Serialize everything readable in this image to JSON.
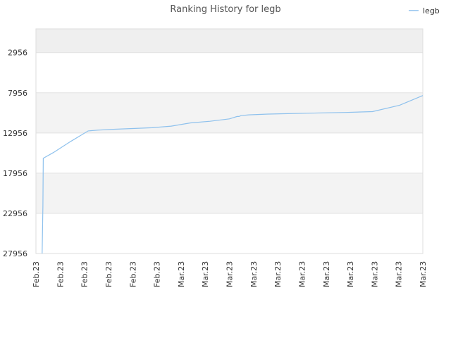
{
  "chart_data": {
    "type": "line",
    "title": "Ranking History for legb",
    "legend": {
      "position": "top-right",
      "entries": [
        {
          "name": "legb",
          "color": "#8ec1ed"
        }
      ]
    },
    "y_axis": {
      "reversed": true,
      "range": [
        27956,
        0
      ],
      "ticks": [
        "2956",
        "7956",
        "12956",
        "17956",
        "22956",
        "27956"
      ],
      "tick_values": [
        2956,
        7956,
        12956,
        17956,
        22956,
        27956
      ]
    },
    "x_axis": {
      "tick_labels": [
        "Feb.23",
        "Feb.23",
        "Feb.23",
        "Feb.23",
        "Feb.23",
        "Feb.23",
        "Mar.23",
        "Mar.23",
        "Mar.23",
        "Mar.23",
        "Mar.23",
        "Mar.23",
        "Mar.23",
        "Mar.23",
        "Mar.23",
        "Mar.23",
        "Mar.23"
      ]
    },
    "grid": true,
    "band_colors": [
      "#efefef",
      "#ffffff",
      "#f3f3f3",
      "#ffffff",
      "#f3f3f3",
      "#ffffff"
    ],
    "series": [
      {
        "name": "legb",
        "color": "#8ec1ed",
        "x": [
          0.016,
          0.018,
          0.019,
          0.045,
          0.09,
          0.135,
          0.16,
          0.2,
          0.25,
          0.3,
          0.35,
          0.4,
          0.45,
          0.5,
          0.52,
          0.525,
          0.53,
          0.55,
          0.6,
          0.65,
          0.7,
          0.75,
          0.8,
          0.87,
          0.94,
          1.0
        ],
        "y": [
          27956,
          22000,
          16100,
          15400,
          14000,
          12700,
          12600,
          12500,
          12400,
          12300,
          12100,
          11700,
          11500,
          11200,
          10900,
          10900,
          10800,
          10700,
          10600,
          10550,
          10500,
          10450,
          10400,
          10300,
          9500,
          8300
        ]
      }
    ]
  }
}
